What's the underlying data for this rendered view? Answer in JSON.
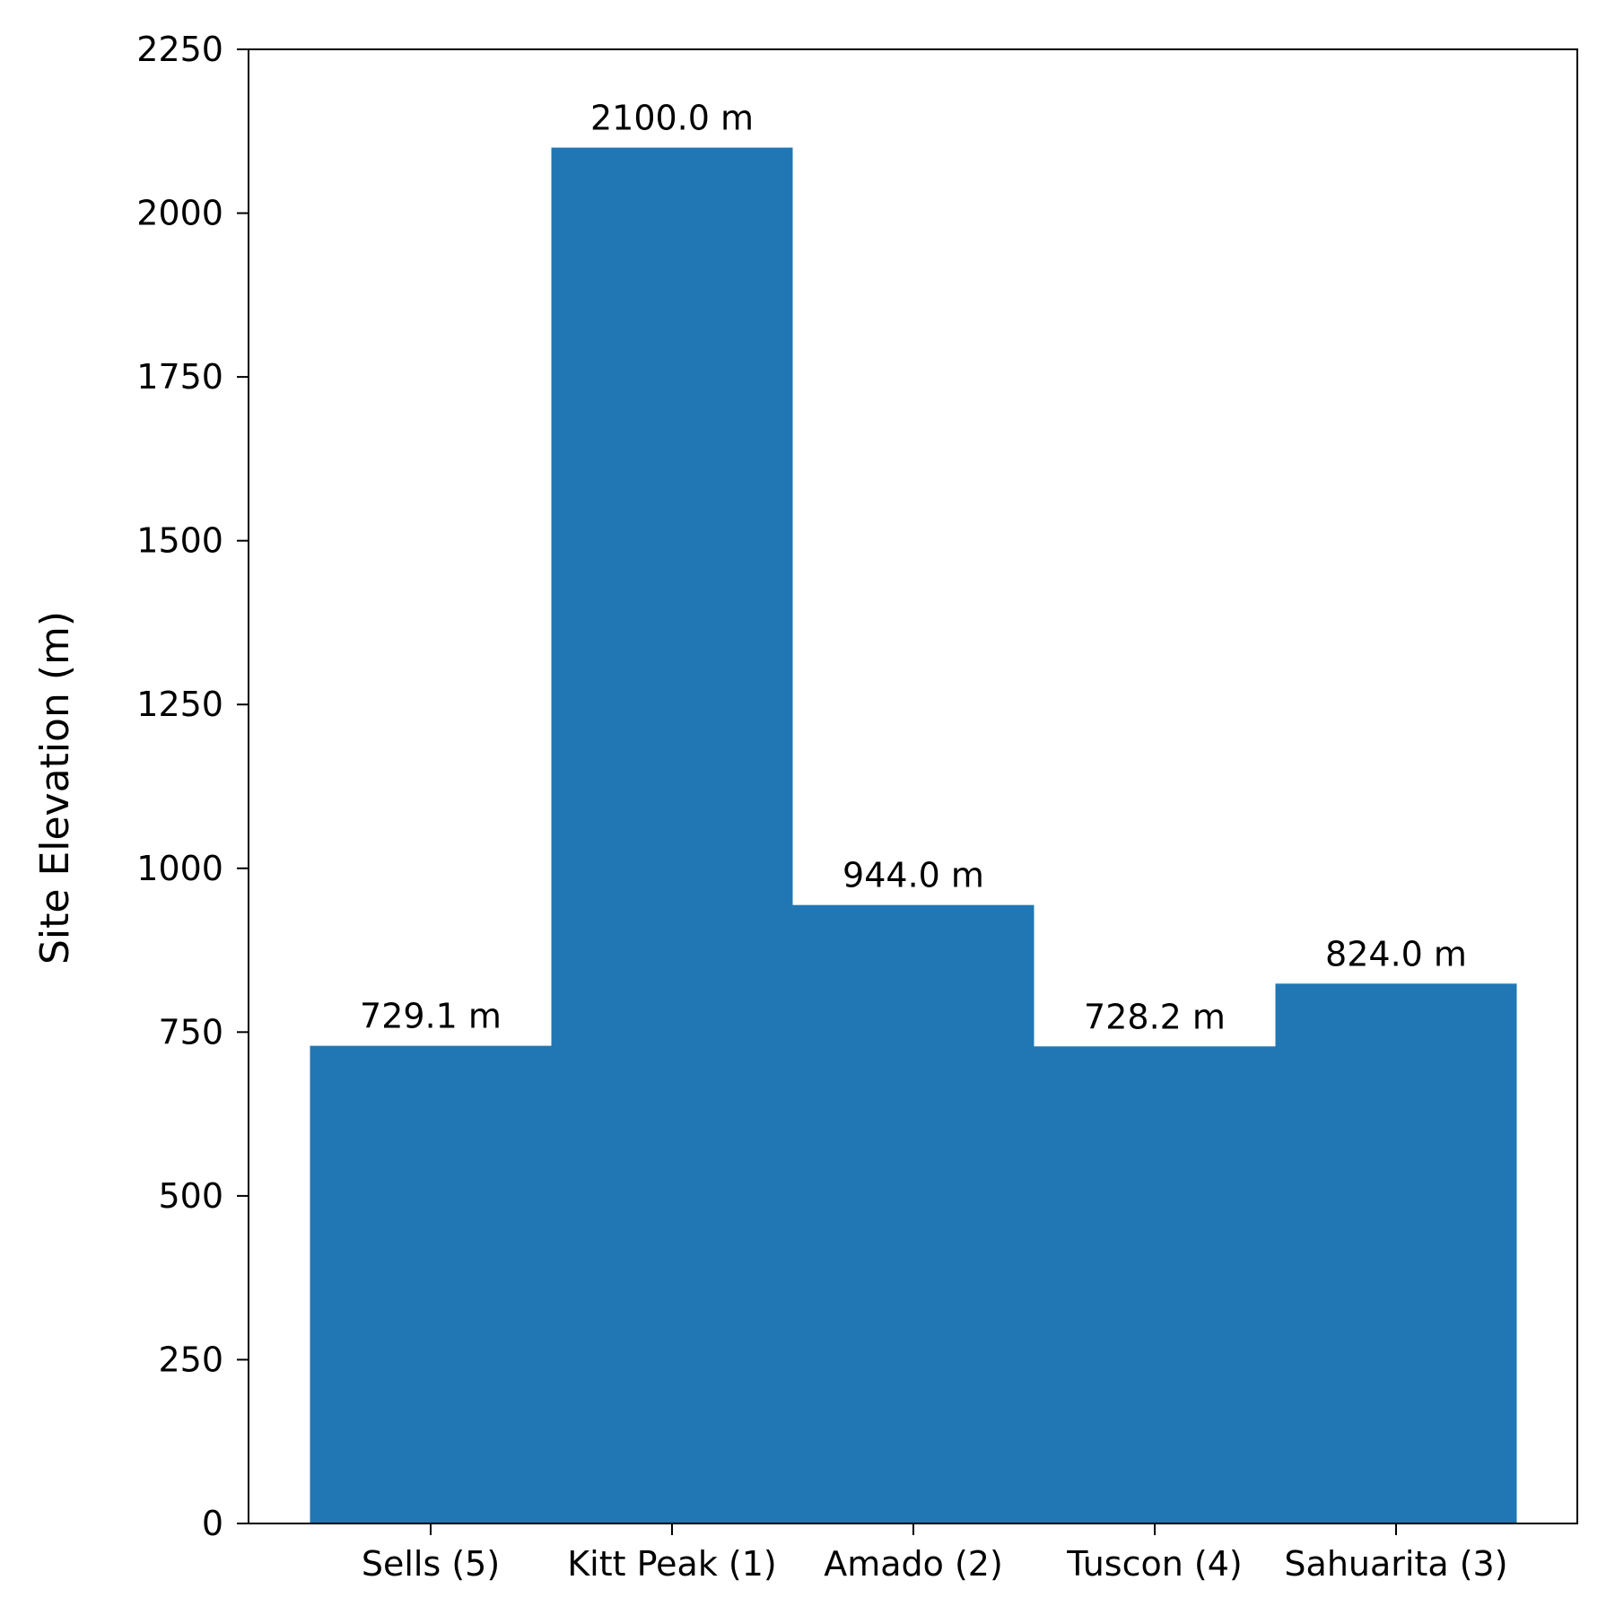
{
  "chart_data": {
    "type": "bar",
    "title": "",
    "xlabel": "",
    "ylabel": "Site Elevation (m)",
    "categories": [
      "Sells (5)",
      "Kitt Peak (1)",
      "Amado (2)",
      "Tuscon (4)",
      "Sahuarita (3)"
    ],
    "values": [
      729.1,
      2100.0,
      944.0,
      728.2,
      824.0
    ],
    "value_labels": [
      "729.1 m",
      "2100.0 m",
      "944.0 m",
      "728.2 m",
      "824.0 m"
    ],
    "ylim": [
      0,
      2250
    ],
    "yticks": [
      0,
      250,
      500,
      750,
      1000,
      1250,
      1500,
      1750,
      2000,
      2250
    ],
    "grid": false,
    "legend": "none",
    "bar_color": "#2077b4"
  }
}
